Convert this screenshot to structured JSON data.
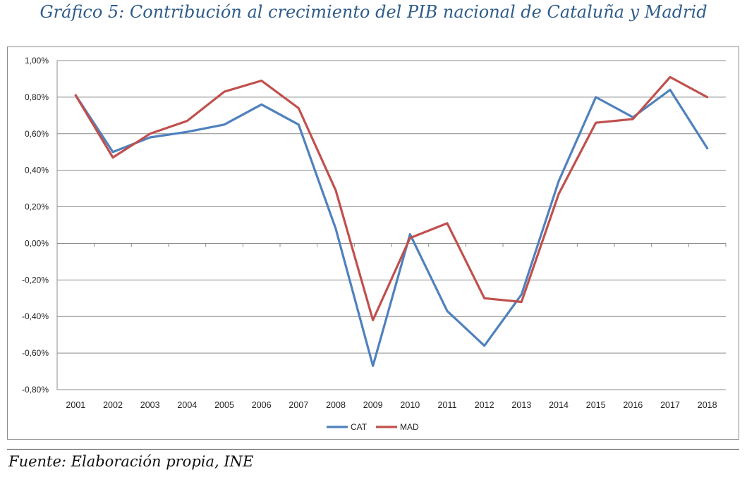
{
  "title": "Gráfico 5: Contribución al crecimiento del PIB nacional de Cataluña y Madrid",
  "source": "Fuente: Elaboración propia, INE",
  "colors": {
    "CAT": "#4F81BD",
    "MAD": "#C0504D",
    "title": "#2E5C8A",
    "grid": "#8c8c8c"
  },
  "chart_data": {
    "type": "line",
    "title": "Gráfico 5: Contribución al crecimiento del PIB nacional de Cataluña y Madrid",
    "xlabel": "",
    "ylabel": "",
    "categories": [
      "2001",
      "2002",
      "2003",
      "2004",
      "2005",
      "2006",
      "2007",
      "2008",
      "2009",
      "2010",
      "2011",
      "2012",
      "2013",
      "2014",
      "2015",
      "2016",
      "2017",
      "2018"
    ],
    "ylim": [
      -0.8,
      1.0
    ],
    "yticks": [
      1.0,
      0.8,
      0.6,
      0.4,
      0.2,
      0.0,
      -0.2,
      -0.4,
      -0.6,
      -0.8
    ],
    "ytick_labels": [
      "1,00%",
      "0,80%",
      "0,60%",
      "0,40%",
      "0,20%",
      "0,00%",
      "-0,20%",
      "-0,40%",
      "-0,60%",
      "-0,80%"
    ],
    "grid": true,
    "legend_position": "bottom-center",
    "series": [
      {
        "name": "CAT",
        "values": [
          0.81,
          0.5,
          0.58,
          0.61,
          0.65,
          0.76,
          0.65,
          0.08,
          -0.67,
          0.05,
          -0.37,
          -0.56,
          -0.28,
          0.34,
          0.8,
          0.69,
          0.84,
          0.52
        ]
      },
      {
        "name": "MAD",
        "values": [
          0.81,
          0.47,
          0.6,
          0.67,
          0.83,
          0.89,
          0.74,
          0.29,
          -0.42,
          0.03,
          0.11,
          -0.3,
          -0.32,
          0.27,
          0.66,
          0.68,
          0.91,
          0.8
        ]
      }
    ]
  }
}
